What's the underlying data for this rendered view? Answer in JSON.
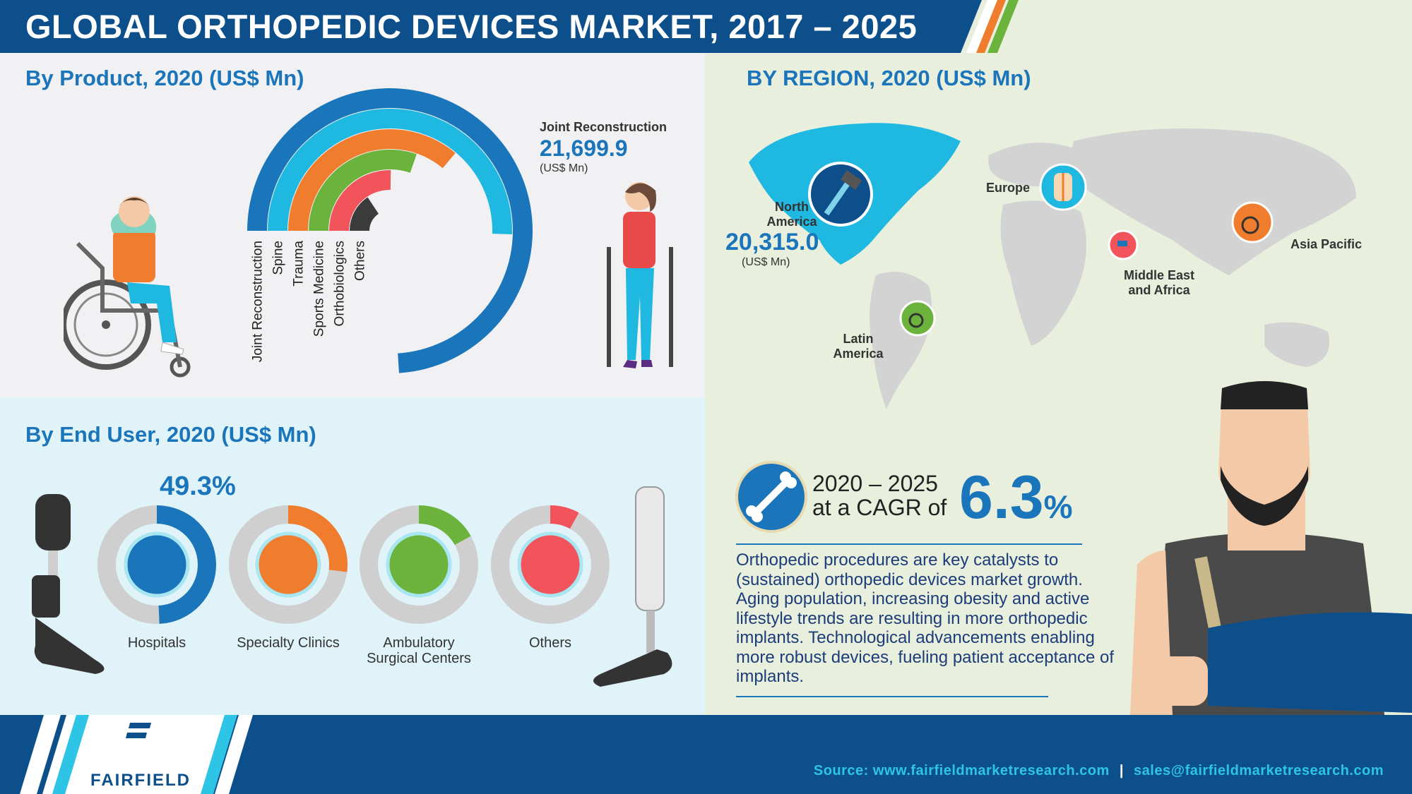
{
  "header": {
    "title": "GLOBAL ORTHOPEDIC DEVICES MARKET, 2017 – 2025"
  },
  "product": {
    "section_title": "By Product, 2020 (US$ Mn)",
    "callout_label": "Joint Reconstruction",
    "callout_value": "21,699.9",
    "callout_unit": "(US$ Mn)"
  },
  "region": {
    "section_title": "BY REGION, 2020 (US$ Mn)",
    "north_america_line1": "North",
    "north_america_line2": "America",
    "north_america_value": "20,315.0",
    "north_america_unit": "(US$ Mn)",
    "europe": "Europe",
    "asia_pacific": "Asia Pacific",
    "mea_line1": "Middle East",
    "mea_line2": "and Africa",
    "latam_line1": "Latin",
    "latam_line2": "America"
  },
  "end_user": {
    "section_title": "By End User, 2020 (US$ Mn)",
    "highlight_value": "49.3%",
    "labels": {
      "hospitals": "Hospitals",
      "specialty": "Specialty Clinics",
      "ambulatory_line1": "Ambulatory",
      "ambulatory_line2": "Surgical Centers",
      "others": "Others"
    }
  },
  "cagr": {
    "period": "2020 – 2025",
    "at_a": "at a CAGR of",
    "value": "6.3",
    "percent_sign": "%"
  },
  "description": "Orthopedic procedures are key catalysts to (sustained) orthopedic devices market growth. Aging population, increasing obesity and active lifestyle trends are resulting in more orthopedic implants. Technological advancements enabling more robust devices, fueling patient acceptance of implants.",
  "footer": {
    "source": "Source: www.fairfieldmarketresearch.com",
    "separator": "|",
    "email": "sales@fairfieldmarketresearch.com",
    "brand": "FAIRFIELD"
  },
  "colors": {
    "blue": "#1b75bb",
    "cyan": "#1fb8e0",
    "orange": "#ef7d2d",
    "green": "#6cb33e",
    "red": "#f2545b",
    "dark": "#3b3b3b",
    "gray": "#cfcfcf",
    "navy": "#0d4f8a"
  },
  "chart_data": [
    {
      "type": "bar",
      "subtype": "radial",
      "title": "By Product, 2020 (US$ Mn)",
      "categories": [
        "Joint Reconstruction",
        "Spine",
        "Trauma",
        "Sports Medicine",
        "Orthobiologics",
        "Others"
      ],
      "values": [
        21699.9,
        14800,
        10600,
        8900,
        7400,
        4600
      ],
      "colors": [
        "#1b75bb",
        "#1fb8e0",
        "#ef7d2d",
        "#6cb33e",
        "#f2545b",
        "#3b3b3b"
      ],
      "ylim": [
        0,
        22000
      ]
    },
    {
      "type": "pie",
      "subtype": "donut",
      "title": "By End User, 2020 (US$ Mn)",
      "categories": [
        "Hospitals",
        "Specialty Clinics",
        "Ambulatory Surgical Centers",
        "Others"
      ],
      "values": [
        49.3,
        27,
        17,
        8
      ],
      "colors": [
        "#1b75bb",
        "#ef7d2d",
        "#6cb33e",
        "#f2545b"
      ],
      "track_color": "#cfcfcf"
    }
  ]
}
